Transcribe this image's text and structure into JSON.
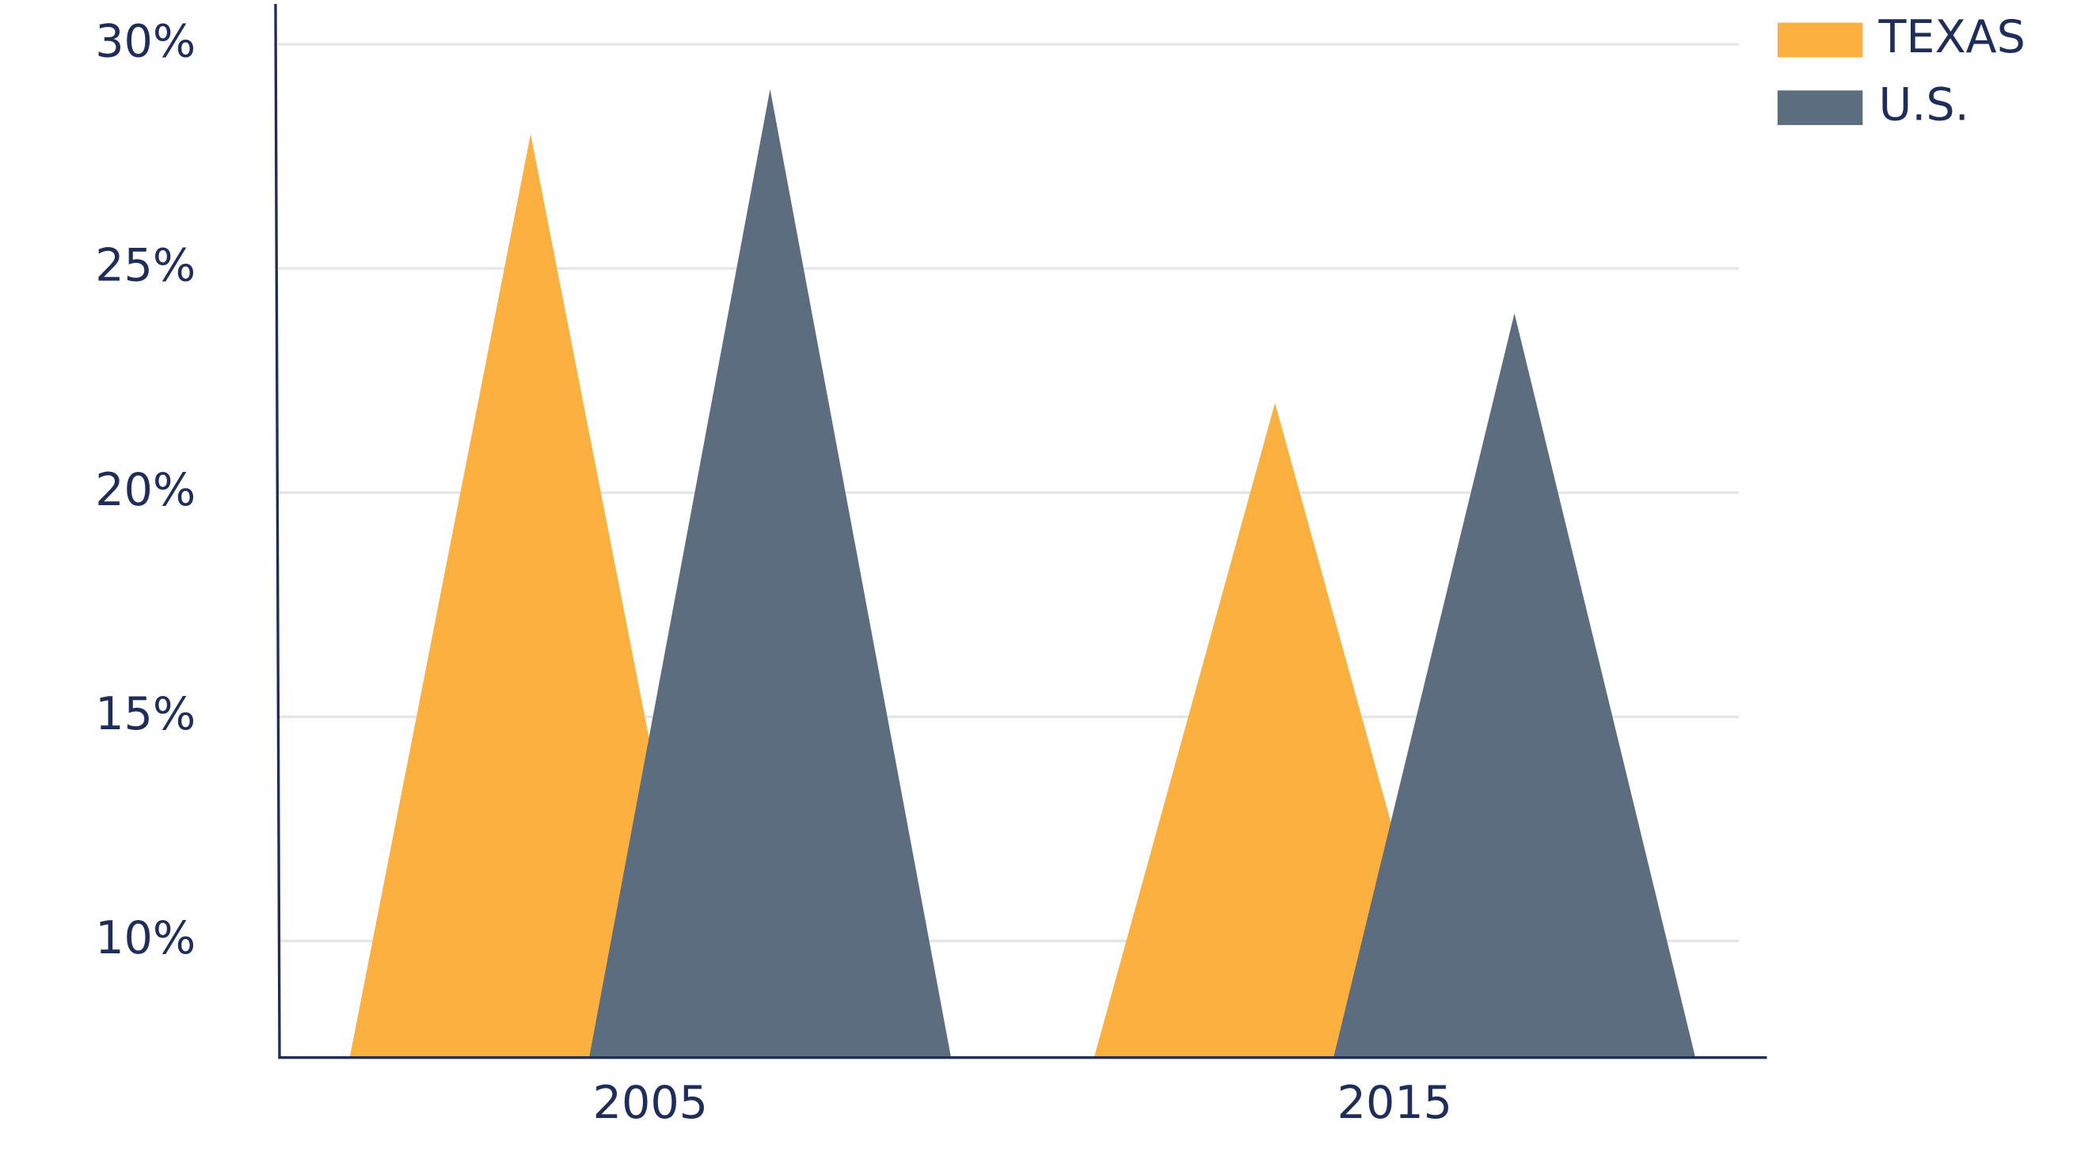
{
  "chart_data": {
    "type": "bar",
    "shape": "triangle",
    "categories": [
      "2005",
      "2015"
    ],
    "series": [
      {
        "name": "TEXAS",
        "color": "#fbb040",
        "values": [
          28,
          22
        ]
      },
      {
        "name": "U.S.",
        "color": "#5b6d7e",
        "values": [
          29,
          24
        ]
      }
    ],
    "ylim": [
      7.4,
      30.9
    ],
    "yticks": [
      {
        "value": 10,
        "label": "10%"
      },
      {
        "value": 15,
        "label": "15%"
      },
      {
        "value": 20,
        "label": "20%"
      },
      {
        "value": 25,
        "label": "25%"
      },
      {
        "value": 30,
        "label": "30%"
      }
    ],
    "grid": true,
    "legend": "top-right"
  }
}
